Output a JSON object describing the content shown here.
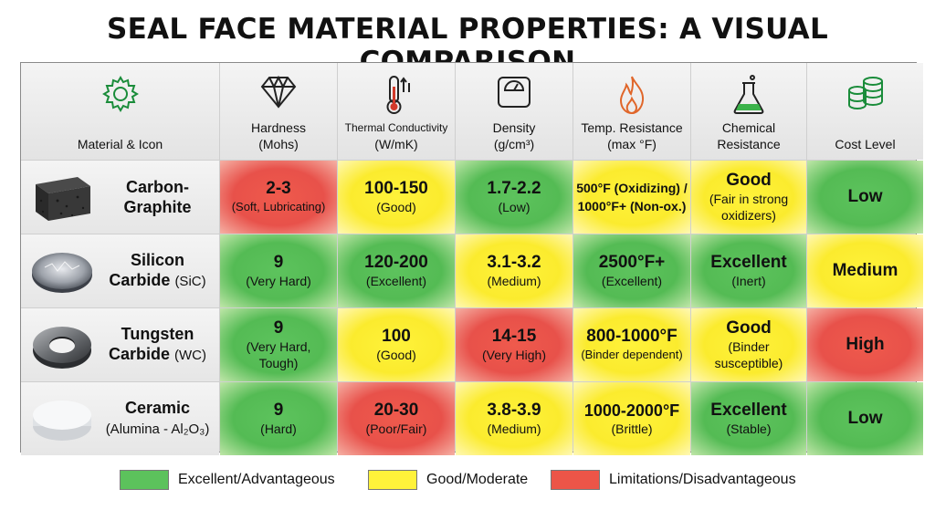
{
  "title": "SEAL FACE MATERIAL PROPERTIES: A VISUAL COMPARISON",
  "chart_data": {
    "type": "table",
    "columns": [
      {
        "label": "Material & Icon",
        "icon": "gear-icon"
      },
      {
        "label": "Hardness",
        "unit": "(Mohs)",
        "icon": "diamond-icon"
      },
      {
        "label": "Thermal Conductivity",
        "unit": "(W/mK)",
        "icon": "thermometer-icon"
      },
      {
        "label": "Density",
        "unit": "(g/cm³)",
        "icon": "scale-icon"
      },
      {
        "label": "Temp. Resistance",
        "unit": "(max °F)",
        "icon": "flame-icon"
      },
      {
        "label": "Chemical",
        "unit": "Resistance",
        "icon": "flask-icon"
      },
      {
        "label": "Cost Level",
        "unit": "",
        "icon": "coins-icon"
      }
    ],
    "rows": [
      {
        "material": {
          "line1": "Carbon-",
          "line2": "Graphite",
          "image": "carbon-graphite-block"
        },
        "cells": [
          {
            "main": "2-3",
            "sub": "(Soft, Lubricating)",
            "rating": "red"
          },
          {
            "main": "100-150",
            "sub": "(Good)",
            "rating": "yellow"
          },
          {
            "main": "1.7-2.2",
            "sub": "(Low)",
            "rating": "green"
          },
          {
            "main": "500°F (Oxidizing) /",
            "sub": "1000°F+ (Non-ox.)",
            "rating": "yellow"
          },
          {
            "main": "Good",
            "sub": "(Fair in strong oxidizers)",
            "rating": "yellow"
          },
          {
            "main": "Low",
            "sub": "",
            "rating": "green"
          }
        ]
      },
      {
        "material": {
          "line1": "Silicon",
          "line2": "Carbide",
          "line2_sub": "(SiC)",
          "image": "silicon-carbide-disc"
        },
        "cells": [
          {
            "main": "9",
            "sub": "(Very Hard)",
            "rating": "green"
          },
          {
            "main": "120-200",
            "sub": "(Excellent)",
            "rating": "green"
          },
          {
            "main": "3.1-3.2",
            "sub": "(Medium)",
            "rating": "yellow"
          },
          {
            "main": "2500°F+",
            "sub": "(Excellent)",
            "rating": "green"
          },
          {
            "main": "Excellent",
            "sub": "(Inert)",
            "rating": "green"
          },
          {
            "main": "Medium",
            "sub": "",
            "rating": "yellow"
          }
        ]
      },
      {
        "material": {
          "line1": "Tungsten",
          "line2": "Carbide",
          "line2_sub": "(WC)",
          "image": "tungsten-carbide-ring"
        },
        "cells": [
          {
            "main": "9",
            "sub": "(Very Hard, Tough)",
            "rating": "green"
          },
          {
            "main": "100",
            "sub": "(Good)",
            "rating": "yellow"
          },
          {
            "main": "14-15",
            "sub": "(Very High)",
            "rating": "red"
          },
          {
            "main": "800-1000°F",
            "sub": "(Binder dependent)",
            "rating": "yellow"
          },
          {
            "main": "Good",
            "sub": "(Binder susceptible)",
            "rating": "yellow"
          },
          {
            "main": "High",
            "sub": "",
            "rating": "red"
          }
        ]
      },
      {
        "material": {
          "line1": "Ceramic",
          "line2": "(Alumina - Al₂O₃)",
          "image": "alumina-disc"
        },
        "cells": [
          {
            "main": "9",
            "sub": "(Hard)",
            "rating": "green"
          },
          {
            "main": "20-30",
            "sub": "(Poor/Fair)",
            "rating": "red"
          },
          {
            "main": "3.8-3.9",
            "sub": "(Medium)",
            "rating": "yellow"
          },
          {
            "main": "1000-2000°F",
            "sub": "(Brittle)",
            "rating": "yellow"
          },
          {
            "main": "Excellent",
            "sub": "(Stable)",
            "rating": "green"
          },
          {
            "main": "Low",
            "sub": "",
            "rating": "green"
          }
        ]
      }
    ]
  },
  "legend": [
    {
      "label": "Excellent/Advantageous",
      "color": "#5cc25c"
    },
    {
      "label": "Good/Moderate",
      "color": "#fff23a"
    },
    {
      "label": "Limitations/Disadvantageous",
      "color": "#ec5548"
    }
  ]
}
